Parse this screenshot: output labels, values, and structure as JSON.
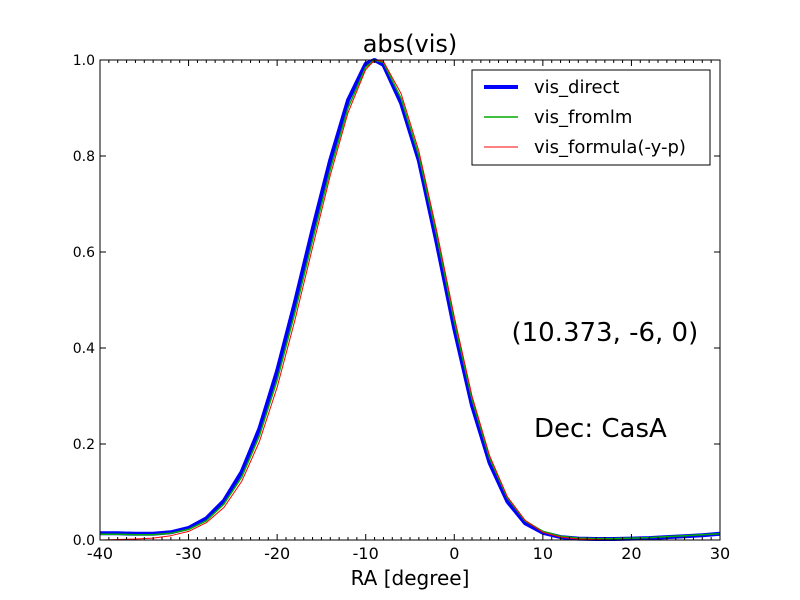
{
  "chart_data": {
    "type": "line",
    "title": "abs(vis)",
    "xlabel": "RA [degree]",
    "ylabel": "",
    "xlim": [
      -40,
      30
    ],
    "ylim": [
      0.0,
      1.0
    ],
    "xticks": [
      -40,
      -30,
      -20,
      -10,
      0,
      10,
      20,
      30
    ],
    "xtick_labels": [
      "-40",
      "-30",
      "-20",
      "-10",
      "0",
      "10",
      "20",
      "30"
    ],
    "yticks": [
      0.0,
      0.2,
      0.4,
      0.6,
      0.8,
      1.0
    ],
    "ytick_labels": [
      "0.0",
      "0.2",
      "0.4",
      "0.6",
      "0.8",
      "1.0"
    ],
    "grid": false,
    "legend_position": "top-right",
    "annotations": [
      {
        "text": "(10.373, -6, 0)",
        "x": 17.0,
        "y": 0.415
      },
      {
        "text": "Dec: CasA",
        "x": 16.5,
        "y": 0.215
      }
    ],
    "series": [
      {
        "name": "vis_direct",
        "color": "#0000ff",
        "x": [
          -40,
          -38,
          -36,
          -34,
          -32,
          -30,
          -28,
          -26,
          -24,
          -22,
          -20,
          -18,
          -16,
          -14,
          -12,
          -10,
          -9,
          -8,
          -6,
          -4,
          -2,
          0,
          2,
          4,
          6,
          8,
          10,
          12,
          14,
          16,
          18,
          20,
          22,
          24,
          26,
          28,
          30
        ],
        "y": [
          0.014,
          0.014,
          0.013,
          0.013,
          0.016,
          0.025,
          0.045,
          0.082,
          0.142,
          0.232,
          0.352,
          0.495,
          0.647,
          0.792,
          0.916,
          0.992,
          1.0,
          0.99,
          0.91,
          0.79,
          0.62,
          0.44,
          0.28,
          0.16,
          0.08,
          0.035,
          0.015,
          0.006,
          0.003,
          0.002,
          0.002,
          0.003,
          0.004,
          0.006,
          0.008,
          0.01,
          0.013
        ]
      },
      {
        "name": "vis_fromlm",
        "color": "#00aa00",
        "x": [
          -40,
          -38,
          -36,
          -34,
          -32,
          -30,
          -28,
          -26,
          -24,
          -22,
          -20,
          -18,
          -16,
          -14,
          -12,
          -10,
          -9,
          -8,
          -6,
          -4,
          -2,
          0,
          2,
          4,
          6,
          8,
          10,
          12,
          14,
          16,
          18,
          20,
          22,
          24,
          26,
          28,
          30
        ],
        "y": [
          0.012,
          0.012,
          0.011,
          0.011,
          0.014,
          0.022,
          0.04,
          0.075,
          0.131,
          0.217,
          0.333,
          0.474,
          0.625,
          0.772,
          0.9,
          0.985,
          1.0,
          0.995,
          0.92,
          0.8,
          0.635,
          0.455,
          0.293,
          0.17,
          0.088,
          0.04,
          0.018,
          0.008,
          0.004,
          0.003,
          0.003,
          0.004,
          0.005,
          0.007,
          0.009,
          0.011,
          0.013
        ]
      },
      {
        "name": "vis_formula(-y-p)",
        "color": "#ff0000",
        "x": [
          -40,
          -38,
          -36,
          -34,
          -32,
          -30,
          -28,
          -26,
          -24,
          -22,
          -20,
          -18,
          -16,
          -14,
          -12,
          -10,
          -9,
          -8,
          -6,
          -4,
          -2,
          0,
          2,
          4,
          6,
          8,
          10,
          12,
          14,
          16,
          18,
          20,
          22,
          24,
          26,
          28,
          30
        ],
        "y": [
          0.0,
          0.001,
          0.002,
          0.004,
          0.009,
          0.018,
          0.036,
          0.068,
          0.122,
          0.205,
          0.318,
          0.458,
          0.61,
          0.76,
          0.89,
          0.98,
          1.0,
          0.997,
          0.93,
          0.81,
          0.645,
          0.465,
          0.3,
          0.175,
          0.09,
          0.041,
          0.016,
          0.006,
          0.002,
          0.001,
          0.0,
          0.0,
          0.0,
          0.0,
          0.0,
          0.0,
          0.0
        ]
      }
    ]
  }
}
